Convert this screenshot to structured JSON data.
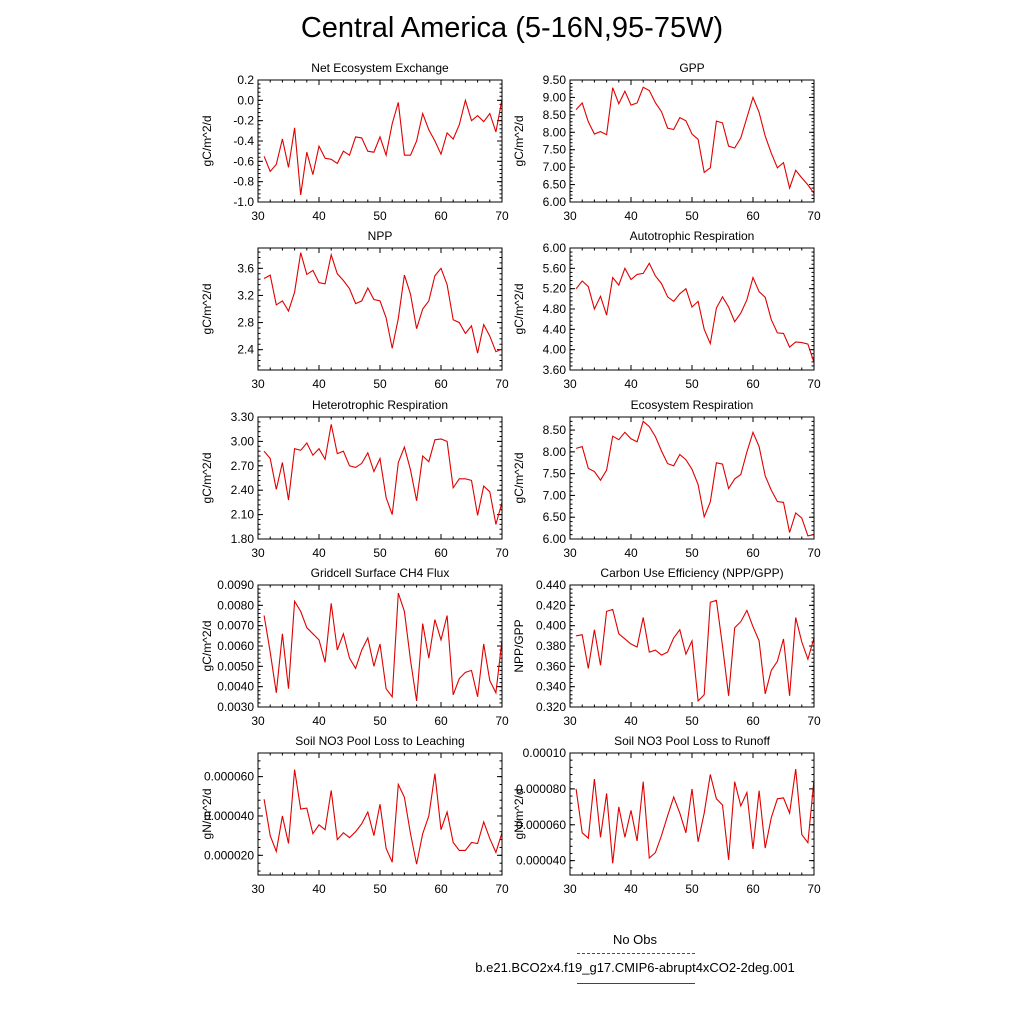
{
  "page": {
    "title": "Central America (5-16N,95-75W)",
    "legend": {
      "obs_label": "No Obs",
      "case_label": "b.e21.BCO2x4.f19_g17.CMIP6-abrupt4xCO2-2deg.001",
      "obs_color": "#3b3bd6",
      "case_color": "#e00000"
    }
  },
  "chart_data": [
    {
      "type": "line",
      "title": "Net Ecosystem Exchange",
      "ylabel": "gC/m^2/d",
      "xlim": [
        30,
        70
      ],
      "ylim": [
        -1.0,
        0.2
      ],
      "xticks": [
        30,
        40,
        50,
        60,
        70
      ],
      "yticks": [
        -1.0,
        -0.8,
        -0.6,
        -0.4,
        -0.2,
        0.0,
        0.2
      ],
      "ytick_labels": [
        "-1.0",
        "-0.8",
        "-0.6",
        "-0.4",
        "-0.2",
        "0.0",
        "0.2"
      ],
      "x": [
        31,
        32,
        33,
        34,
        35,
        36,
        37,
        38,
        39,
        40,
        41,
        42,
        43,
        44,
        45,
        46,
        47,
        48,
        49,
        50,
        51,
        52,
        53,
        54,
        55,
        56,
        57,
        58,
        59,
        60,
        61,
        62,
        63,
        64,
        65,
        66,
        67,
        68,
        69,
        70
      ],
      "series": [
        {
          "name": "b.e21.BCO2x4.f19_g17.CMIP6-abrupt4xCO2-2deg.001",
          "values": [
            -0.55,
            -0.7,
            -0.63,
            -0.38,
            -0.66,
            -0.27,
            -0.93,
            -0.51,
            -0.73,
            -0.45,
            -0.57,
            -0.58,
            -0.62,
            -0.5,
            -0.54,
            -0.36,
            -0.37,
            -0.5,
            -0.51,
            -0.36,
            -0.54,
            -0.23,
            -0.02,
            -0.54,
            -0.54,
            -0.4,
            -0.13,
            -0.29,
            -0.4,
            -0.53,
            -0.32,
            -0.38,
            -0.24,
            0.0,
            -0.2,
            -0.15,
            -0.21,
            -0.13,
            -0.31,
            0.01
          ]
        }
      ]
    },
    {
      "type": "line",
      "title": "GPP",
      "ylabel": "gC/m^2/d",
      "xlim": [
        30,
        70
      ],
      "ylim": [
        6.0,
        9.5
      ],
      "xticks": [
        30,
        40,
        50,
        60,
        70
      ],
      "yticks": [
        6.0,
        6.5,
        7.0,
        7.5,
        8.0,
        8.5,
        9.0,
        9.5
      ],
      "ytick_labels": [
        "6.00",
        "6.50",
        "7.00",
        "7.50",
        "8.00",
        "8.50",
        "9.00",
        "9.50"
      ],
      "x": [
        31,
        32,
        33,
        34,
        35,
        36,
        37,
        38,
        39,
        40,
        41,
        42,
        43,
        44,
        45,
        46,
        47,
        48,
        49,
        50,
        51,
        52,
        53,
        54,
        55,
        56,
        57,
        58,
        59,
        60,
        61,
        62,
        63,
        64,
        65,
        66,
        67,
        68,
        69,
        70
      ],
      "series": [
        {
          "name": "b.e21.BCO2x4.f19_g17.CMIP6-abrupt4xCO2-2deg.001",
          "values": [
            8.65,
            8.84,
            8.3,
            7.95,
            8.02,
            7.93,
            9.28,
            8.82,
            9.18,
            8.78,
            8.84,
            9.29,
            9.2,
            8.85,
            8.59,
            8.12,
            8.08,
            8.42,
            8.33,
            7.95,
            7.8,
            6.85,
            6.98,
            8.32,
            8.27,
            7.6,
            7.55,
            7.84,
            8.42,
            9.0,
            8.57,
            7.89,
            7.4,
            6.98,
            7.13,
            6.4,
            6.91,
            6.69,
            6.49,
            6.25
          ]
        }
      ]
    },
    {
      "type": "line",
      "title": "NPP",
      "ylabel": "gC/m^2/d",
      "xlim": [
        30,
        70
      ],
      "ylim": [
        2.1,
        3.9
      ],
      "xticks": [
        30,
        40,
        50,
        60,
        70
      ],
      "yticks": [
        2.4,
        2.8,
        3.2,
        3.6
      ],
      "ytick_labels": [
        "2.4",
        "2.8",
        "3.2",
        "3.6"
      ],
      "x": [
        31,
        32,
        33,
        34,
        35,
        36,
        37,
        38,
        39,
        40,
        41,
        42,
        43,
        44,
        45,
        46,
        47,
        48,
        49,
        50,
        51,
        52,
        53,
        54,
        55,
        56,
        57,
        58,
        59,
        60,
        61,
        62,
        63,
        64,
        65,
        66,
        67,
        68,
        69,
        70
      ],
      "series": [
        {
          "name": "b.e21.BCO2x4.f19_g17.CMIP6-abrupt4xCO2-2deg.001",
          "values": [
            3.45,
            3.5,
            3.06,
            3.12,
            2.97,
            3.25,
            3.83,
            3.51,
            3.57,
            3.39,
            3.37,
            3.8,
            3.52,
            3.42,
            3.3,
            3.08,
            3.12,
            3.31,
            3.14,
            3.12,
            2.87,
            2.42,
            2.86,
            3.5,
            3.22,
            2.71,
            3.0,
            3.12,
            3.49,
            3.6,
            3.36,
            2.84,
            2.8,
            2.64,
            2.75,
            2.35,
            2.77,
            2.6,
            2.37,
            2.41
          ]
        }
      ]
    },
    {
      "type": "line",
      "title": "Autotrophic Respiration",
      "ylabel": "gC/m^2/d",
      "xlim": [
        30,
        70
      ],
      "ylim": [
        3.6,
        6.0
      ],
      "xticks": [
        30,
        40,
        50,
        60,
        70
      ],
      "yticks": [
        3.6,
        4.0,
        4.4,
        4.8,
        5.2,
        5.6,
        6.0
      ],
      "ytick_labels": [
        "3.60",
        "4.00",
        "4.40",
        "4.80",
        "5.20",
        "5.60",
        "6.00"
      ],
      "x": [
        31,
        32,
        33,
        34,
        35,
        36,
        37,
        38,
        39,
        40,
        41,
        42,
        43,
        44,
        45,
        46,
        47,
        48,
        49,
        50,
        51,
        52,
        53,
        54,
        55,
        56,
        57,
        58,
        59,
        60,
        61,
        62,
        63,
        64,
        65,
        66,
        67,
        68,
        69,
        70
      ],
      "series": [
        {
          "name": "b.e21.BCO2x4.f19_g17.CMIP6-abrupt4xCO2-2deg.001",
          "values": [
            5.2,
            5.35,
            5.24,
            4.8,
            5.05,
            4.68,
            5.42,
            5.27,
            5.6,
            5.38,
            5.48,
            5.5,
            5.7,
            5.45,
            5.3,
            5.04,
            4.95,
            5.1,
            5.2,
            4.84,
            4.95,
            4.4,
            4.12,
            4.82,
            5.04,
            4.84,
            4.55,
            4.72,
            4.98,
            5.42,
            5.14,
            5.03,
            4.59,
            4.33,
            4.32,
            4.05,
            4.15,
            4.14,
            4.11,
            3.75
          ]
        }
      ]
    },
    {
      "type": "line",
      "title": "Heterotrophic Respiration",
      "ylabel": "gC/m^2/d",
      "xlim": [
        30,
        70
      ],
      "ylim": [
        1.8,
        3.3
      ],
      "xticks": [
        30,
        40,
        50,
        60,
        70
      ],
      "yticks": [
        1.8,
        2.1,
        2.4,
        2.7,
        3.0,
        3.3
      ],
      "ytick_labels": [
        "1.80",
        "2.10",
        "2.40",
        "2.70",
        "3.00",
        "3.30"
      ],
      "x": [
        31,
        32,
        33,
        34,
        35,
        36,
        37,
        38,
        39,
        40,
        41,
        42,
        43,
        44,
        45,
        46,
        47,
        48,
        49,
        50,
        51,
        52,
        53,
        54,
        55,
        56,
        57,
        58,
        59,
        60,
        61,
        62,
        63,
        64,
        65,
        66,
        67,
        68,
        69,
        70
      ],
      "series": [
        {
          "name": "b.e21.BCO2x4.f19_g17.CMIP6-abrupt4xCO2-2deg.001",
          "values": [
            2.88,
            2.79,
            2.41,
            2.74,
            2.28,
            2.91,
            2.89,
            2.98,
            2.83,
            2.91,
            2.78,
            3.21,
            2.85,
            2.88,
            2.7,
            2.68,
            2.73,
            2.86,
            2.63,
            2.79,
            2.31,
            2.1,
            2.74,
            2.93,
            2.65,
            2.27,
            2.82,
            2.75,
            3.02,
            3.03,
            3.0,
            2.43,
            2.54,
            2.54,
            2.52,
            2.09,
            2.45,
            2.38,
            1.98,
            2.25
          ]
        }
      ]
    },
    {
      "type": "line",
      "title": "Ecosystem Respiration",
      "ylabel": "gC/m^2/d",
      "xlim": [
        30,
        70
      ],
      "ylim": [
        6.0,
        8.8
      ],
      "xticks": [
        30,
        40,
        50,
        60,
        70
      ],
      "yticks": [
        6.0,
        6.5,
        7.0,
        7.5,
        8.0,
        8.5
      ],
      "ytick_labels": [
        "6.00",
        "6.50",
        "7.00",
        "7.50",
        "8.00",
        "8.50"
      ],
      "x": [
        31,
        32,
        33,
        34,
        35,
        36,
        37,
        38,
        39,
        40,
        41,
        42,
        43,
        44,
        45,
        46,
        47,
        48,
        49,
        50,
        51,
        52,
        53,
        54,
        55,
        56,
        57,
        58,
        59,
        60,
        61,
        62,
        63,
        64,
        65,
        66,
        67,
        68,
        69,
        70
      ],
      "series": [
        {
          "name": "b.e21.BCO2x4.f19_g17.CMIP6-abrupt4xCO2-2deg.001",
          "values": [
            8.08,
            8.12,
            7.62,
            7.55,
            7.35,
            7.58,
            8.36,
            8.28,
            8.45,
            8.3,
            8.23,
            8.7,
            8.58,
            8.35,
            8.02,
            7.73,
            7.68,
            7.94,
            7.82,
            7.6,
            7.25,
            6.51,
            6.85,
            7.75,
            7.72,
            7.16,
            7.38,
            7.48,
            8.0,
            8.45,
            8.12,
            7.45,
            7.12,
            6.86,
            6.84,
            6.15,
            6.6,
            6.48,
            6.07,
            6.1
          ]
        }
      ]
    },
    {
      "type": "line",
      "title": "Gridcell Surface CH4 Flux",
      "ylabel": "gC/m^2/d",
      "xlim": [
        30,
        70
      ],
      "ylim": [
        0.003,
        0.009
      ],
      "xticks": [
        30,
        40,
        50,
        60,
        70
      ],
      "yticks": [
        0.003,
        0.004,
        0.005,
        0.006,
        0.007,
        0.008,
        0.009
      ],
      "ytick_labels": [
        "0.0030",
        "0.0040",
        "0.0050",
        "0.0060",
        "0.0070",
        "0.0080",
        "0.0090"
      ],
      "x": [
        31,
        32,
        33,
        34,
        35,
        36,
        37,
        38,
        39,
        40,
        41,
        42,
        43,
        44,
        45,
        46,
        47,
        48,
        49,
        50,
        51,
        52,
        53,
        54,
        55,
        56,
        57,
        58,
        59,
        60,
        61,
        62,
        63,
        64,
        65,
        66,
        67,
        68,
        69,
        70
      ],
      "series": [
        {
          "name": "b.e21.BCO2x4.f19_g17.CMIP6-abrupt4xCO2-2deg.001",
          "values": [
            0.0075,
            0.0057,
            0.0037,
            0.0066,
            0.0039,
            0.0082,
            0.0077,
            0.0069,
            0.0066,
            0.0063,
            0.0052,
            0.0081,
            0.0058,
            0.0066,
            0.0054,
            0.0049,
            0.0058,
            0.0064,
            0.005,
            0.0061,
            0.0039,
            0.0035,
            0.0086,
            0.0077,
            0.0053,
            0.0033,
            0.0071,
            0.0054,
            0.0073,
            0.0063,
            0.0075,
            0.0036,
            0.0044,
            0.0047,
            0.0048,
            0.0035,
            0.0061,
            0.0043,
            0.0037,
            0.0063
          ]
        }
      ]
    },
    {
      "type": "line",
      "title": "Carbon Use Efficiency (NPP/GPP)",
      "ylabel": "NPP/GPP",
      "xlim": [
        30,
        70
      ],
      "ylim": [
        0.32,
        0.44
      ],
      "xticks": [
        30,
        40,
        50,
        60,
        70
      ],
      "yticks": [
        0.32,
        0.34,
        0.36,
        0.38,
        0.4,
        0.42,
        0.44
      ],
      "ytick_labels": [
        "0.320",
        "0.340",
        "0.360",
        "0.380",
        "0.400",
        "0.420",
        "0.440"
      ],
      "x": [
        31,
        32,
        33,
        34,
        35,
        36,
        37,
        38,
        39,
        40,
        41,
        42,
        43,
        44,
        45,
        46,
        47,
        48,
        49,
        50,
        51,
        52,
        53,
        54,
        55,
        56,
        57,
        58,
        59,
        60,
        61,
        62,
        63,
        64,
        65,
        66,
        67,
        68,
        69,
        70
      ],
      "series": [
        {
          "name": "b.e21.BCO2x4.f19_g17.CMIP6-abrupt4xCO2-2deg.001",
          "values": [
            0.39,
            0.391,
            0.358,
            0.396,
            0.361,
            0.414,
            0.416,
            0.392,
            0.387,
            0.382,
            0.379,
            0.408,
            0.374,
            0.376,
            0.371,
            0.374,
            0.388,
            0.396,
            0.372,
            0.385,
            0.326,
            0.332,
            0.423,
            0.425,
            0.38,
            0.331,
            0.398,
            0.404,
            0.415,
            0.399,
            0.385,
            0.333,
            0.356,
            0.365,
            0.387,
            0.331,
            0.408,
            0.384,
            0.367,
            0.388
          ]
        }
      ]
    },
    {
      "type": "line",
      "title": "Soil NO3 Pool Loss to Leaching",
      "ylabel": "gN/m^2/d",
      "xlim": [
        30,
        70
      ],
      "ylim": [
        1e-05,
        7.2e-05
      ],
      "xticks": [
        30,
        40,
        50,
        60,
        70
      ],
      "yticks": [
        2e-05,
        4e-05,
        6e-05
      ],
      "ytick_labels": [
        "0.000020",
        "0.000040",
        "0.000060"
      ],
      "x": [
        31,
        32,
        33,
        34,
        35,
        36,
        37,
        38,
        39,
        40,
        41,
        42,
        43,
        44,
        45,
        46,
        47,
        48,
        49,
        50,
        51,
        52,
        53,
        54,
        55,
        56,
        57,
        58,
        59,
        60,
        61,
        62,
        63,
        64,
        65,
        66,
        67,
        68,
        69,
        70
      ],
      "series": [
        {
          "name": "b.e21.BCO2x4.f19_g17.CMIP6-abrupt4xCO2-2deg.001",
          "values": [
            4.85e-05,
            3e-05,
            2.2e-05,
            4e-05,
            2.6e-05,
            6.35e-05,
            4.35e-05,
            4.4e-05,
            3.1e-05,
            3.55e-05,
            3.3e-05,
            5.3e-05,
            2.8e-05,
            3.15e-05,
            2.9e-05,
            3.2e-05,
            3.6e-05,
            4.2e-05,
            3e-05,
            4.6e-05,
            2.35e-05,
            1.65e-05,
            5.6e-05,
            4.95e-05,
            3.1e-05,
            1.55e-05,
            3.1e-05,
            4e-05,
            6.15e-05,
            3.3e-05,
            4.2e-05,
            2.65e-05,
            2.25e-05,
            2.25e-05,
            2.65e-05,
            2.6e-05,
            3.7e-05,
            2.85e-05,
            2.15e-05,
            3.15e-05
          ]
        }
      ]
    },
    {
      "type": "line",
      "title": "Soil NO3 Pool Loss to Runoff",
      "ylabel": "gN/m^2/d",
      "xlim": [
        30,
        70
      ],
      "ylim": [
        3.2e-05,
        0.0001
      ],
      "xticks": [
        30,
        40,
        50,
        60,
        70
      ],
      "yticks": [
        4e-05,
        6e-05,
        8e-05,
        0.0001
      ],
      "ytick_labels": [
        "0.000040",
        "0.000060",
        "0.000080",
        "0.00010"
      ],
      "x": [
        31,
        32,
        33,
        34,
        35,
        36,
        37,
        38,
        39,
        40,
        41,
        42,
        43,
        44,
        45,
        46,
        47,
        48,
        49,
        50,
        51,
        52,
        53,
        54,
        55,
        56,
        57,
        58,
        59,
        60,
        61,
        62,
        63,
        64,
        65,
        66,
        67,
        68,
        69,
        70
      ],
      "series": [
        {
          "name": "b.e21.BCO2x4.f19_g17.CMIP6-abrupt4xCO2-2deg.001",
          "values": [
            8e-05,
            5.55e-05,
            5.25e-05,
            8.55e-05,
            5.3e-05,
            7.75e-05,
            3.85e-05,
            7e-05,
            5.3e-05,
            6.8e-05,
            5.1e-05,
            8.4e-05,
            4.15e-05,
            4.45e-05,
            5.4e-05,
            6.5e-05,
            7.55e-05,
            6.65e-05,
            5.55e-05,
            8e-05,
            5.05e-05,
            6.65e-05,
            8.8e-05,
            7.45e-05,
            7.1e-05,
            4.05e-05,
            8.4e-05,
            7.05e-05,
            7.8e-05,
            4.65e-05,
            7.9e-05,
            4.7e-05,
            6.4e-05,
            7.45e-05,
            7.5e-05,
            6.65e-05,
            9.1e-05,
            5.45e-05,
            5e-05,
            8.5e-05
          ]
        }
      ]
    }
  ]
}
